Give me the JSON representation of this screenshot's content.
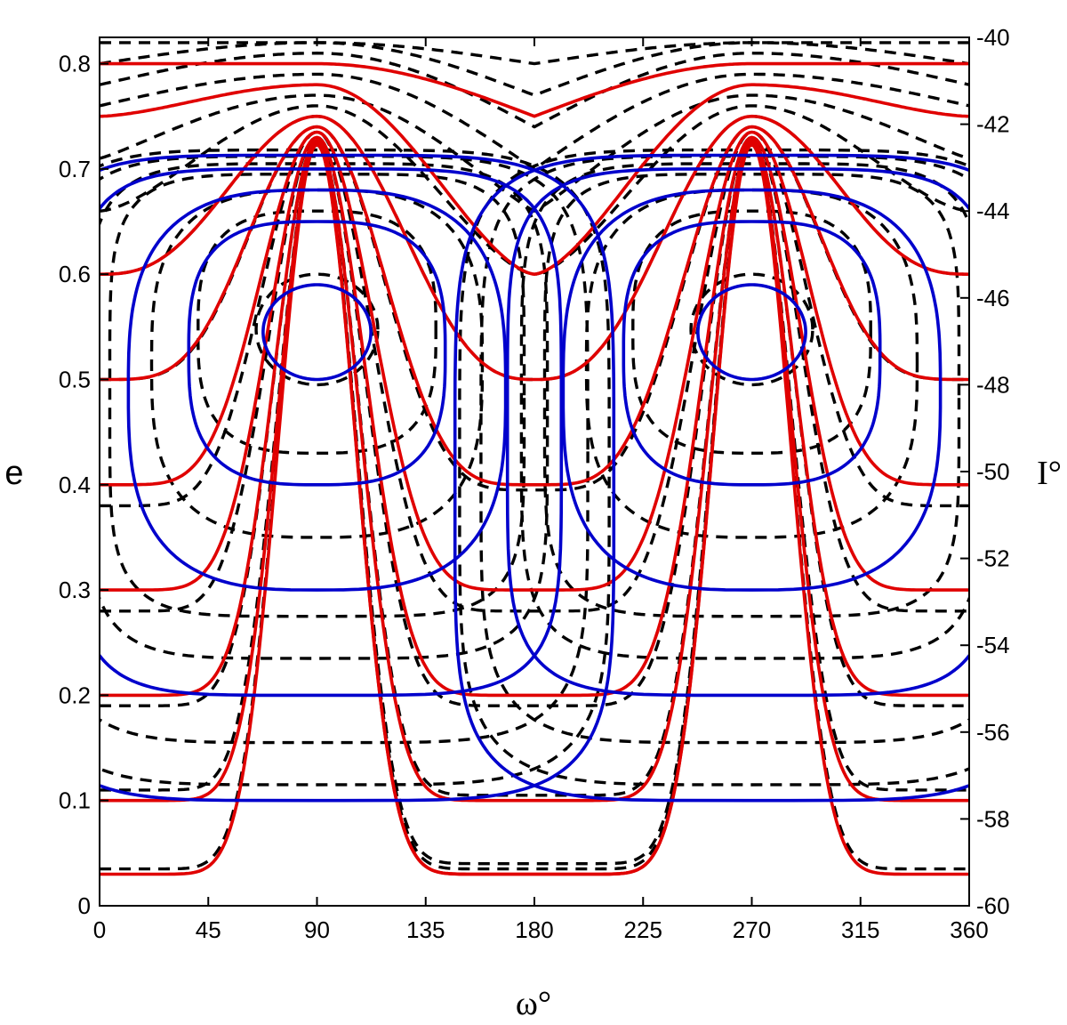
{
  "chart_data": {
    "type": "line",
    "xlabel": "ω°",
    "ylabel_left": "e",
    "ylabel_right": "I°",
    "xlim": [
      0,
      360
    ],
    "ylim_left": [
      0,
      0.825
    ],
    "ylim_right": [
      -60,
      -40
    ],
    "x_ticks": [
      "0",
      "45",
      "90",
      "135",
      "180",
      "225",
      "270",
      "315",
      "360"
    ],
    "y_ticks_left": [
      "0",
      "0.1",
      "0.2",
      "0.3",
      "0.4",
      "0.5",
      "0.6",
      "0.7",
      "0.8"
    ],
    "y_ticks_right": [
      "-40",
      "-42",
      "-44",
      "-46",
      "-48",
      "-50",
      "-52",
      "-54",
      "-56",
      "-58",
      "-60"
    ],
    "colors": {
      "circulating": "#e00000",
      "librating": "#0000cc",
      "dashed": "#000000"
    },
    "grid": false,
    "series": [
      {
        "style": "red-solid",
        "kind": "circulating",
        "e_at_0": 0.8,
        "e_at_90": 0.8,
        "e_at_180": 0.75
      },
      {
        "style": "red-solid",
        "kind": "circulating",
        "e_at_0": 0.75,
        "e_at_90": 0.78,
        "e_at_180": 0.6
      },
      {
        "style": "red-solid",
        "kind": "circulating",
        "e_at_0": 0.6,
        "e_at_90": 0.75,
        "e_at_180": 0.5
      },
      {
        "style": "red-solid",
        "kind": "circulating",
        "e_at_0": 0.5,
        "e_at_90": 0.74,
        "e_at_180": 0.4
      },
      {
        "style": "red-solid",
        "kind": "circulating",
        "e_at_0": 0.4,
        "e_at_90": 0.735,
        "e_at_180": 0.3
      },
      {
        "style": "red-solid",
        "kind": "circulating",
        "e_at_0": 0.3,
        "e_at_90": 0.73,
        "e_at_180": 0.2
      },
      {
        "style": "red-solid",
        "kind": "circulating",
        "e_at_0": 0.2,
        "e_at_90": 0.727,
        "e_at_180": 0.1
      },
      {
        "style": "red-solid",
        "kind": "circulating",
        "e_at_0": 0.1,
        "e_at_90": 0.725,
        "e_at_180": 0.03
      },
      {
        "style": "red-solid",
        "kind": "circulating",
        "e_at_0": 0.03,
        "e_at_90": 0.723,
        "e_at_180": 0.03
      },
      {
        "style": "blue-solid",
        "kind": "librating",
        "center_omega": [
          90,
          270
        ],
        "e_range": [
          0.5,
          0.59
        ]
      },
      {
        "style": "blue-solid",
        "kind": "librating",
        "center_omega": [
          90,
          270
        ],
        "e_range": [
          0.4,
          0.65
        ]
      },
      {
        "style": "blue-solid",
        "kind": "librating",
        "center_omega": [
          90,
          270
        ],
        "e_range": [
          0.3,
          0.68
        ]
      },
      {
        "style": "blue-solid",
        "kind": "librating",
        "center_omega": [
          90,
          270
        ],
        "e_range": [
          0.2,
          0.7
        ]
      },
      {
        "style": "blue-solid",
        "kind": "librating",
        "center_omega": [
          90,
          270
        ],
        "e_range": [
          0.1,
          0.713
        ]
      },
      {
        "style": "black-dashed",
        "kind": "circulating",
        "e_at_0": 0.82,
        "e_at_90": 0.82,
        "e_at_180": 0.8
      },
      {
        "style": "black-dashed",
        "kind": "circulating",
        "e_at_0": 0.8,
        "e_at_90": 0.82,
        "e_at_180": 0.77
      },
      {
        "style": "black-dashed",
        "kind": "circulating",
        "e_at_0": 0.78,
        "e_at_90": 0.81,
        "e_at_180": 0.74
      },
      {
        "style": "black-dashed",
        "kind": "circulating",
        "e_at_0": 0.76,
        "e_at_90": 0.79,
        "e_at_180": 0.7
      },
      {
        "style": "black-dashed",
        "kind": "circulating",
        "e_at_0": 0.71,
        "e_at_90": 0.77,
        "e_at_180": 0.66
      },
      {
        "style": "black-dashed",
        "kind": "circulating",
        "e_at_0": 0.66,
        "e_at_90": 0.76,
        "e_at_180": 0.6
      },
      {
        "style": "black-dashed",
        "kind": "circulating",
        "e_at_0": 0.6,
        "e_at_90": 0.75,
        "e_at_180": 0.5
      },
      {
        "style": "black-dashed",
        "kind": "circulating",
        "e_at_0": 0.5,
        "e_at_90": 0.74,
        "e_at_180": 0.395
      },
      {
        "style": "black-dashed",
        "kind": "circulating",
        "e_at_0": 0.38,
        "e_at_90": 0.735,
        "e_at_180": 0.28
      },
      {
        "style": "black-dashed",
        "kind": "circulating",
        "e_at_0": 0.28,
        "e_at_90": 0.73,
        "e_at_180": 0.19
      },
      {
        "style": "black-dashed",
        "kind": "circulating",
        "e_at_0": 0.19,
        "e_at_90": 0.727,
        "e_at_180": 0.105
      },
      {
        "style": "black-dashed",
        "kind": "circulating",
        "e_at_0": 0.11,
        "e_at_90": 0.725,
        "e_at_180": 0.04
      },
      {
        "style": "black-dashed",
        "kind": "circulating",
        "e_at_0": 0.035,
        "e_at_90": 0.723,
        "e_at_180": 0.035
      },
      {
        "style": "black-dashed",
        "kind": "librating",
        "center_omega": [
          90,
          270
        ],
        "e_range": [
          0.495,
          0.6
        ]
      },
      {
        "style": "black-dashed",
        "kind": "librating",
        "center_omega": [
          90,
          270
        ],
        "e_range": [
          0.43,
          0.66
        ]
      },
      {
        "style": "black-dashed",
        "kind": "librating",
        "center_omega": [
          90,
          270
        ],
        "e_range": [
          0.35,
          0.68
        ]
      },
      {
        "style": "black-dashed",
        "kind": "librating",
        "center_omega": [
          90,
          270
        ],
        "e_range": [
          0.275,
          0.695
        ]
      },
      {
        "style": "black-dashed",
        "kind": "librating",
        "center_omega": [
          90,
          270
        ],
        "e_range": [
          0.235,
          0.705
        ]
      },
      {
        "style": "black-dashed",
        "kind": "librating",
        "center_omega": [
          90,
          270
        ],
        "e_range": [
          0.155,
          0.712
        ]
      },
      {
        "style": "black-dashed",
        "kind": "librating",
        "center_omega": [
          90,
          270
        ],
        "e_range": [
          0.115,
          0.718
        ]
      }
    ]
  }
}
